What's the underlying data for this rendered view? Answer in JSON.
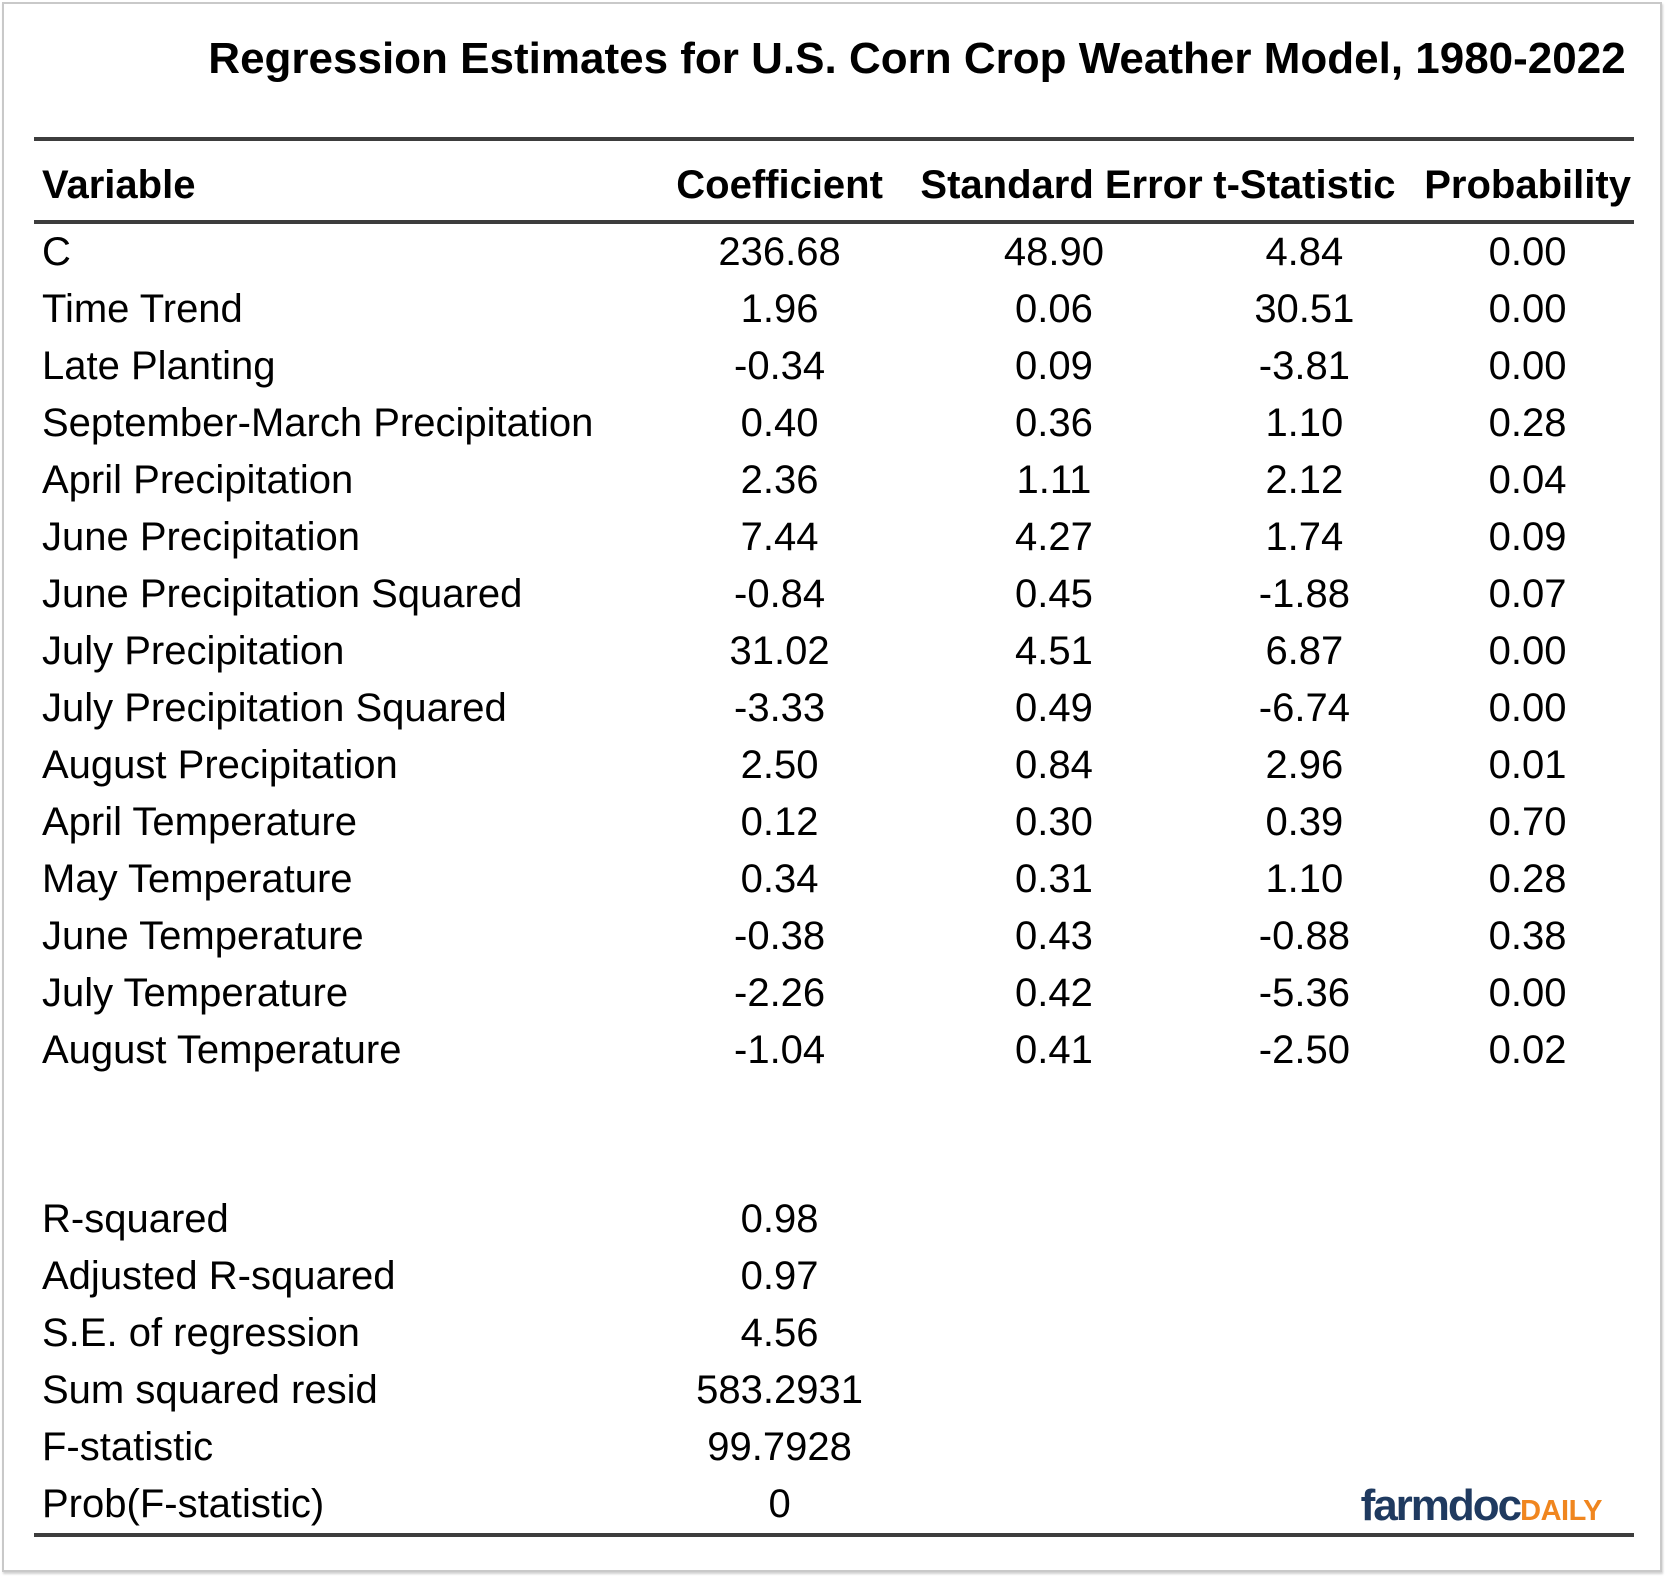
{
  "title": "Regression Estimates for U.S. Corn Crop Weather Model, 1980-2022",
  "chart_data": {
    "type": "table",
    "title": "Regression Estimates for U.S. Corn Crop Weather Model, 1980-2022",
    "columns": [
      "Variable",
      "Coefficient",
      "Standard Error",
      "t-Statistic",
      "Probability"
    ],
    "rows": [
      [
        "C",
        "236.68",
        "48.90",
        "4.84",
        "0.00"
      ],
      [
        "Time Trend",
        "1.96",
        "0.06",
        "30.51",
        "0.00"
      ],
      [
        "Late Planting",
        "-0.34",
        "0.09",
        "-3.81",
        "0.00"
      ],
      [
        "September-March Precipitation",
        "0.40",
        "0.36",
        "1.10",
        "0.28"
      ],
      [
        "April Precipitation",
        "2.36",
        "1.11",
        "2.12",
        "0.04"
      ],
      [
        "June Precipitation",
        "7.44",
        "4.27",
        "1.74",
        "0.09"
      ],
      [
        "June Precipitation Squared",
        "-0.84",
        "0.45",
        "-1.88",
        "0.07"
      ],
      [
        "July Precipitation",
        "31.02",
        "4.51",
        "6.87",
        "0.00"
      ],
      [
        "July Precipitation Squared",
        "-3.33",
        "0.49",
        "-6.74",
        "0.00"
      ],
      [
        "August Precipitation",
        "2.50",
        "0.84",
        "2.96",
        "0.01"
      ],
      [
        "April Temperature",
        "0.12",
        "0.30",
        "0.39",
        "0.70"
      ],
      [
        "May Temperature",
        "0.34",
        "0.31",
        "1.10",
        "0.28"
      ],
      [
        "June Temperature",
        "-0.38",
        "0.43",
        "-0.88",
        "0.38"
      ],
      [
        "July Temperature",
        "-2.26",
        "0.42",
        "-5.36",
        "0.00"
      ],
      [
        "August Temperature",
        "-1.04",
        "0.41",
        "-2.50",
        "0.02"
      ]
    ],
    "summary_stats": [
      [
        "R-squared",
        "0.98"
      ],
      [
        "Adjusted R-squared",
        "0.97"
      ],
      [
        "S.E. of regression",
        "4.56"
      ],
      [
        "Sum squared resid",
        "583.2931"
      ],
      [
        "F-statistic",
        "99.7928"
      ],
      [
        "Prob(F-statistic)",
        "0"
      ]
    ],
    "layout": {
      "grid": false,
      "header_rule_color": "#3d3d3d",
      "value_columns_alignment": "center"
    }
  },
  "branding": {
    "logo_text_primary": "farmdoc",
    "logo_text_secondary": "DAILY",
    "logo_primary_color": "#1f3a60",
    "logo_secondary_color": "#f0861f"
  }
}
